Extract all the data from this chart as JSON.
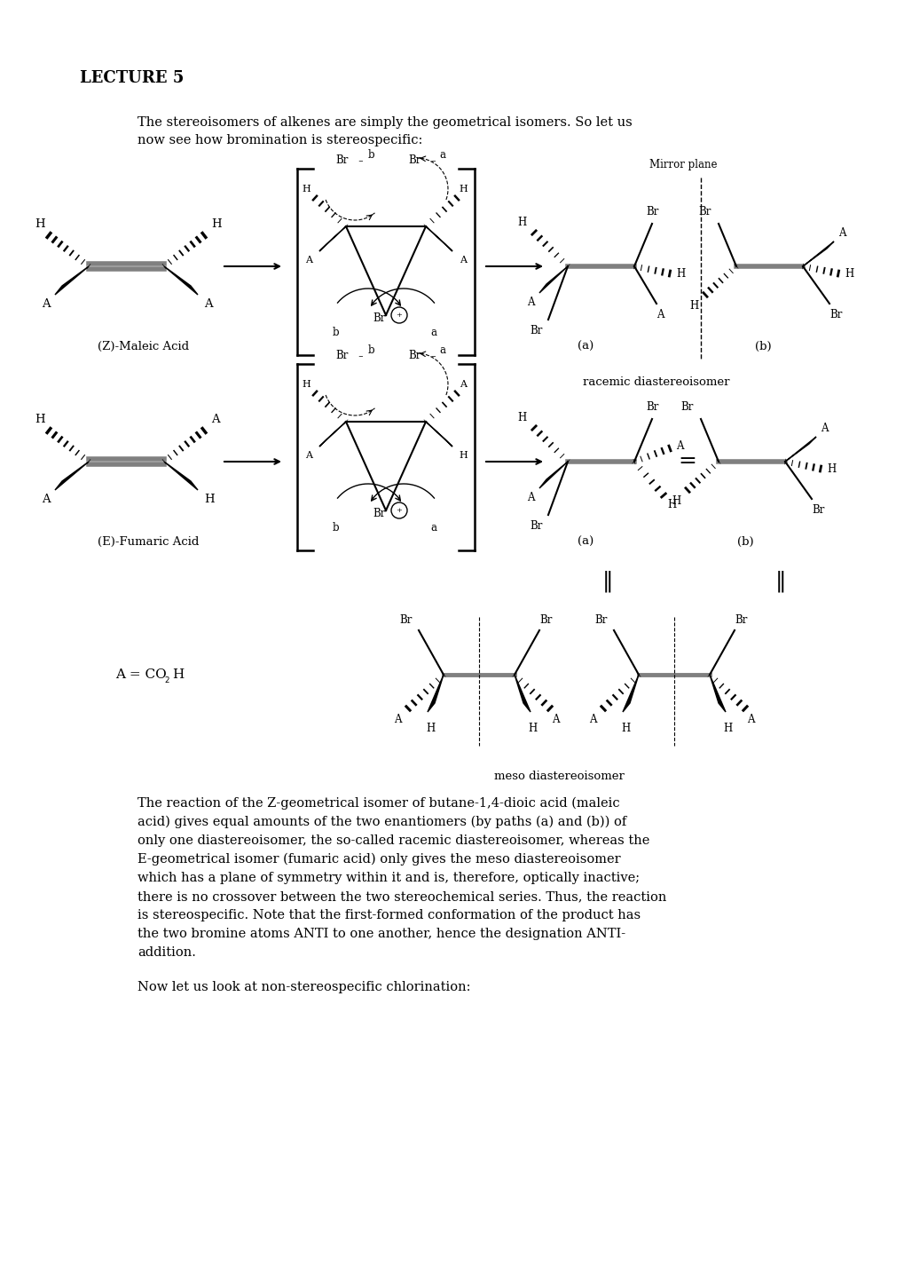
{
  "title": "LECTURE 5",
  "sub1": "The stereoisomers of alkenes are simply the geometrical isomers. So let us",
  "sub2": "now see how bromination is stereospecific:",
  "z_label": "(Z)-Maleic Acid",
  "e_label": "(E)-Fumaric Acid",
  "mirror_label": "Mirror plane",
  "racemic_label": "racemic diastereoisomer",
  "meso_label": "meso diastereoisomer",
  "a_co2h": "A = CO",
  "para1": "The reaction of the Z-geometrical isomer of butane-1,4-dioic acid (maleic",
  "para2": "acid) gives equal amounts of the two enantiomers (by paths (a) and (b)) of",
  "para3": "only one diastereoisomer, the so-called racemic diastereoisomer, whereas the",
  "para4": "E-geometrical isomer (fumaric acid) only gives the meso diastereoisomer",
  "para5": "which has a plane of symmetry within it and is, therefore, optically inactive;",
  "para6": "there is no crossover between the two stereochemical series. Thus, the reaction",
  "para7": "is stereospecific. Note that the first-formed conformation of the product has",
  "para8": "the two bromine atoms ANTI to one another, hence the designation ANTI-",
  "para9": "addition.",
  "now_let": "Now let us look at non-stereospecific chlorination:",
  "bg": "#ffffff"
}
